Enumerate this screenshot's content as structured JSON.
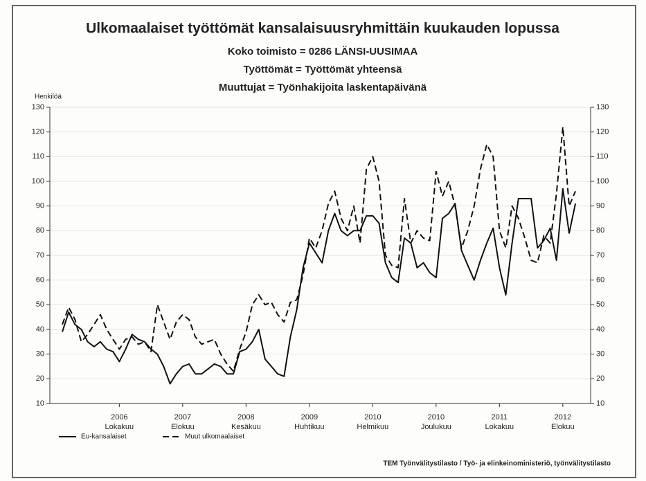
{
  "chart_data": {
    "type": "line",
    "title": "Ulkomaalaiset työttömät kansalaisuusryhmittäin kuukauden lopussa",
    "subtitles": [
      "Koko toimisto = 0286 LÄNSI-UUSIMAA",
      "Työttömät =  Työttömät yhteensä",
      "Muuttujat = Työnhakijoita laskentapäivänä"
    ],
    "y_axis_label": "Henkilöä",
    "source": "TEM Työnvälitystilasto / Työ- ja elinkeinoministeriö, työnvälitystilasto",
    "categories": [
      null,
      null,
      null,
      null,
      null,
      null,
      null,
      null,
      null,
      "2006\nLokakuu",
      null,
      null,
      null,
      null,
      null,
      null,
      null,
      null,
      null,
      "2007\nElokuu",
      null,
      null,
      null,
      null,
      null,
      null,
      null,
      null,
      null,
      "2008\nKesäkuu",
      null,
      null,
      null,
      null,
      null,
      null,
      null,
      null,
      null,
      "2009\nHuhtikuu",
      null,
      null,
      null,
      null,
      null,
      null,
      null,
      null,
      null,
      "2010\nHelmikuu",
      null,
      null,
      null,
      null,
      null,
      null,
      null,
      null,
      null,
      "2010\nJoulukuu",
      null,
      null,
      null,
      null,
      null,
      null,
      null,
      null,
      null,
      "2011\nLokakuu",
      null,
      null,
      null,
      null,
      null,
      null,
      null,
      null,
      null,
      "2012\nElokuu",
      null,
      null
    ],
    "series": [
      {
        "name": "Eu-kansalaiset",
        "color": "#111111",
        "dash": "solid",
        "values": [
          39,
          47,
          42,
          40,
          35,
          33,
          35,
          32,
          31,
          27,
          32,
          38,
          36,
          35,
          32,
          30,
          25,
          18,
          22,
          25,
          26,
          22,
          22,
          24,
          26,
          25,
          22,
          22,
          31,
          32,
          35,
          40,
          28,
          25,
          22,
          21,
          37,
          48,
          65,
          75,
          71,
          67,
          80,
          87,
          80,
          78,
          80,
          80,
          86,
          86,
          83,
          67,
          61,
          59,
          77,
          75,
          65,
          67,
          63,
          61,
          85,
          87,
          91,
          72,
          66,
          60,
          68,
          75,
          81,
          65,
          54,
          75,
          93,
          93,
          93,
          73,
          76,
          81,
          68,
          97,
          79,
          91
        ]
      },
      {
        "name": "Muut ulkomaalaiset",
        "color": "#111111",
        "dash": "dashed",
        "values": [
          42,
          49,
          44,
          35,
          38,
          42,
          46,
          40,
          36,
          32,
          36,
          37,
          34,
          35,
          31,
          50,
          43,
          36,
          43,
          46,
          44,
          37,
          34,
          35,
          36,
          30,
          26,
          23,
          32,
          39,
          50,
          54,
          50,
          51,
          46,
          43,
          51,
          52,
          62,
          77,
          73,
          80,
          91,
          96,
          85,
          80,
          90,
          75,
          105,
          110,
          100,
          70,
          66,
          65,
          93,
          75,
          80,
          77,
          76,
          104,
          94,
          100,
          90,
          73,
          80,
          90,
          105,
          115,
          110,
          80,
          73,
          90,
          85,
          77,
          68,
          67,
          78,
          75,
          95,
          122,
          90,
          96
        ]
      }
    ],
    "ylim": [
      10,
      130
    ],
    "yticks": [
      10,
      20,
      30,
      40,
      50,
      60,
      70,
      80,
      90,
      100,
      110,
      120,
      130
    ],
    "y2lim": [
      10,
      130
    ],
    "y2ticks": [
      10,
      20,
      30,
      40,
      50,
      60,
      70,
      80,
      90,
      100,
      110,
      120,
      130
    ],
    "grid": true
  }
}
